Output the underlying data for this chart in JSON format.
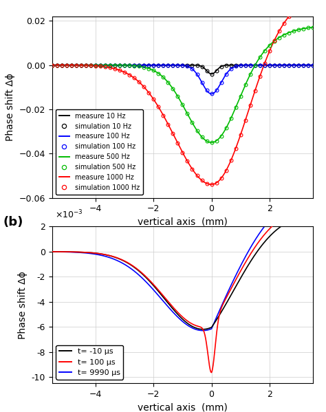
{
  "panel_a": {
    "xlim": [
      -5.5,
      3.5
    ],
    "ylim": [
      -0.06,
      0.022
    ],
    "yticks": [
      0.02,
      0,
      -0.02,
      -0.04,
      -0.06
    ],
    "xticks": [
      -4,
      -2,
      0,
      2
    ],
    "xlabel": "vertical axis  (mm)",
    "ylabel": "Phase shift Δϕ",
    "legend": [
      {
        "label": "measure 10 Hz",
        "color": "#000000",
        "marker": null
      },
      {
        "label": "simulation 10 Hz",
        "color": "#000000",
        "marker": "o"
      },
      {
        "label": "measure 100 Hz",
        "color": "#0000ff",
        "marker": null
      },
      {
        "label": "simulation 100 Hz",
        "color": "#0000ff",
        "marker": "o"
      },
      {
        "label": "measure 500 Hz",
        "color": "#00bb00",
        "marker": null
      },
      {
        "label": "simulation 500 Hz",
        "color": "#00bb00",
        "marker": "o"
      },
      {
        "label": "measure 1000 Hz",
        "color": "#ff0000",
        "marker": null
      },
      {
        "label": "simulation 1000 Hz",
        "color": "#ff0000",
        "marker": "o"
      }
    ]
  },
  "panel_b": {
    "xlim": [
      -5.5,
      3.5
    ],
    "ylim": [
      -0.0105,
      0.002
    ],
    "yticks": [
      2,
      0,
      -2,
      -4,
      -6,
      -8,
      -10
    ],
    "xticks": [
      -4,
      -2,
      0,
      2
    ],
    "xlabel": "vertical axis  (mm)",
    "ylabel": "Phase shift Δϕ",
    "legend": [
      {
        "label": "t= -10 μs",
        "color": "#000000"
      },
      {
        "label": "t= 100 μs",
        "color": "#ff0000"
      },
      {
        "label": "t= 9990 μs",
        "color": "#0000ff"
      }
    ]
  }
}
